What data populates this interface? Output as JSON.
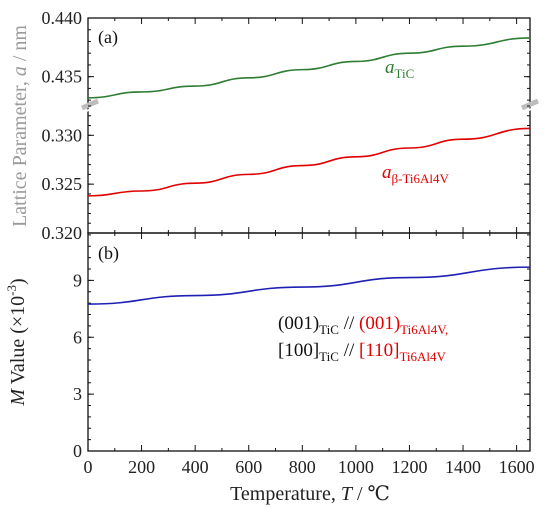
{
  "chart_data": [
    {
      "panel": "(a)",
      "type": "line",
      "ylabel": {
        "pre": "Lattice Parameter, ",
        "var": "a",
        "post": " / nm"
      },
      "y_axis_broken": true,
      "y_segments": [
        {
          "range": [
            0.32,
            0.333
          ],
          "ticks": [
            "0.320",
            "0.325",
            "0.330"
          ]
        },
        {
          "range": [
            0.4325,
            0.44
          ],
          "ticks": [
            "0.435",
            "0.440"
          ]
        }
      ],
      "series": [
        {
          "name": "a_TiC",
          "label": {
            "var": "a",
            "sub": "TiC"
          },
          "color": "#2e7d32",
          "segment": 1,
          "x": [
            0,
            200,
            400,
            600,
            800,
            1000,
            1200,
            1400,
            1650
          ],
          "y": [
            0.4332,
            0.4337,
            0.4342,
            0.4349,
            0.4356,
            0.4363,
            0.437,
            0.4376,
            0.4383
          ]
        },
        {
          "name": "a_β-Ti6Al4V",
          "label": {
            "var": "a",
            "sub": "β-Ti6Al4V"
          },
          "color": "#e00000",
          "segment": 0,
          "x": [
            0,
            200,
            400,
            600,
            800,
            1000,
            1200,
            1400,
            1650
          ],
          "y": [
            0.3238,
            0.3243,
            0.3251,
            0.326,
            0.3269,
            0.3278,
            0.3287,
            0.3296,
            0.3307
          ]
        }
      ]
    },
    {
      "panel": "(b)",
      "type": "line",
      "ylabel": {
        "var": "M",
        "post": " Value (×10",
        "sup": "-3",
        "close": ")"
      },
      "ylim": [
        0,
        11.5
      ],
      "yticks": [
        0,
        3,
        6,
        9
      ],
      "xlabel": {
        "pre": "Temperature, ",
        "var": "T",
        "post": " / ℃"
      },
      "xlim": [
        0,
        1650
      ],
      "xticks": [
        0,
        200,
        400,
        600,
        800,
        1000,
        1200,
        1400,
        1600
      ],
      "series": [
        {
          "name": "M",
          "color": "#1f1fb4",
          "x": [
            0,
            400,
            800,
            1200,
            1650
          ],
          "y": [
            7.75,
            8.2,
            8.65,
            9.15,
            9.7
          ]
        }
      ],
      "annotation": {
        "line1": [
          {
            "text": "(001)",
            "color": "#111111",
            "sub": "TiC"
          },
          {
            "text": " // ",
            "color": "#111111"
          },
          {
            "text": "(001)",
            "color": "#e00000",
            "sub": "Ti6Al4V,"
          }
        ],
        "line2": [
          {
            "text": "[100]",
            "color": "#111111",
            "sub": "TiC"
          },
          {
            "text": " // ",
            "color": "#111111"
          },
          {
            "text": "[110]",
            "color": "#e00000",
            "sub": "Ti6Al4V"
          }
        ]
      }
    }
  ]
}
